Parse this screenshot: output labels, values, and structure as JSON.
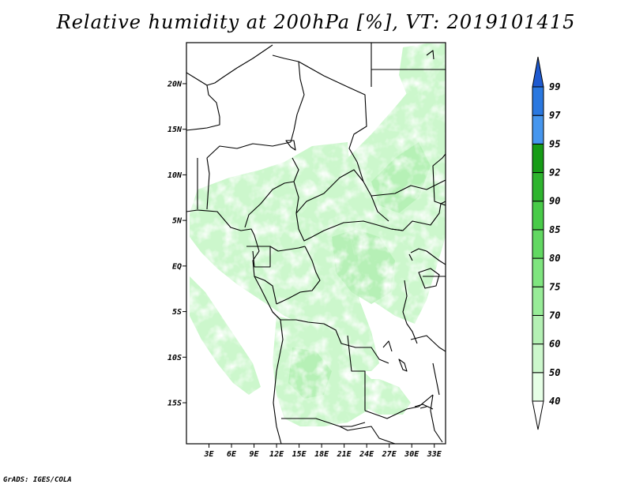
{
  "title": "Relative humidity at 200hPa [%], VT: 2019101415",
  "credit": "GrADS: IGES/COLA",
  "map": {
    "lon_range": [
      0,
      34.5
    ],
    "lat_range": [
      -19.5,
      24.5
    ],
    "lat_ticks": [
      {
        "value": 20,
        "label": "20N"
      },
      {
        "value": 15,
        "label": "15N"
      },
      {
        "value": 10,
        "label": "10N"
      },
      {
        "value": 5,
        "label": "5N"
      },
      {
        "value": 0,
        "label": "EQ"
      },
      {
        "value": -5,
        "label": "5S"
      },
      {
        "value": -10,
        "label": "10S"
      },
      {
        "value": -15,
        "label": "15S"
      }
    ],
    "lon_ticks": [
      {
        "value": 3,
        "label": "3E"
      },
      {
        "value": 6,
        "label": "6E"
      },
      {
        "value": 9,
        "label": "9E"
      },
      {
        "value": 12,
        "label": "12E"
      },
      {
        "value": 15,
        "label": "15E"
      },
      {
        "value": 18,
        "label": "18E"
      },
      {
        "value": 21,
        "label": "21E"
      },
      {
        "value": 24,
        "label": "24E"
      },
      {
        "value": 27,
        "label": "27E"
      },
      {
        "value": 30,
        "label": "30E"
      },
      {
        "value": 33,
        "label": "33E"
      }
    ]
  },
  "colorbar": {
    "levels": [
      "40",
      "50",
      "60",
      "70",
      "75",
      "80",
      "85",
      "90",
      "92",
      "95",
      "97",
      "99"
    ],
    "colors": [
      "#ffffff",
      "#e6ffe6",
      "#ccf7cc",
      "#b4f0b4",
      "#98ec98",
      "#7fe57f",
      "#62d862",
      "#48cb48",
      "#2eb42e",
      "#169c16",
      "#4696ee",
      "#2a78e0",
      "#1e5ad0"
    ]
  }
}
